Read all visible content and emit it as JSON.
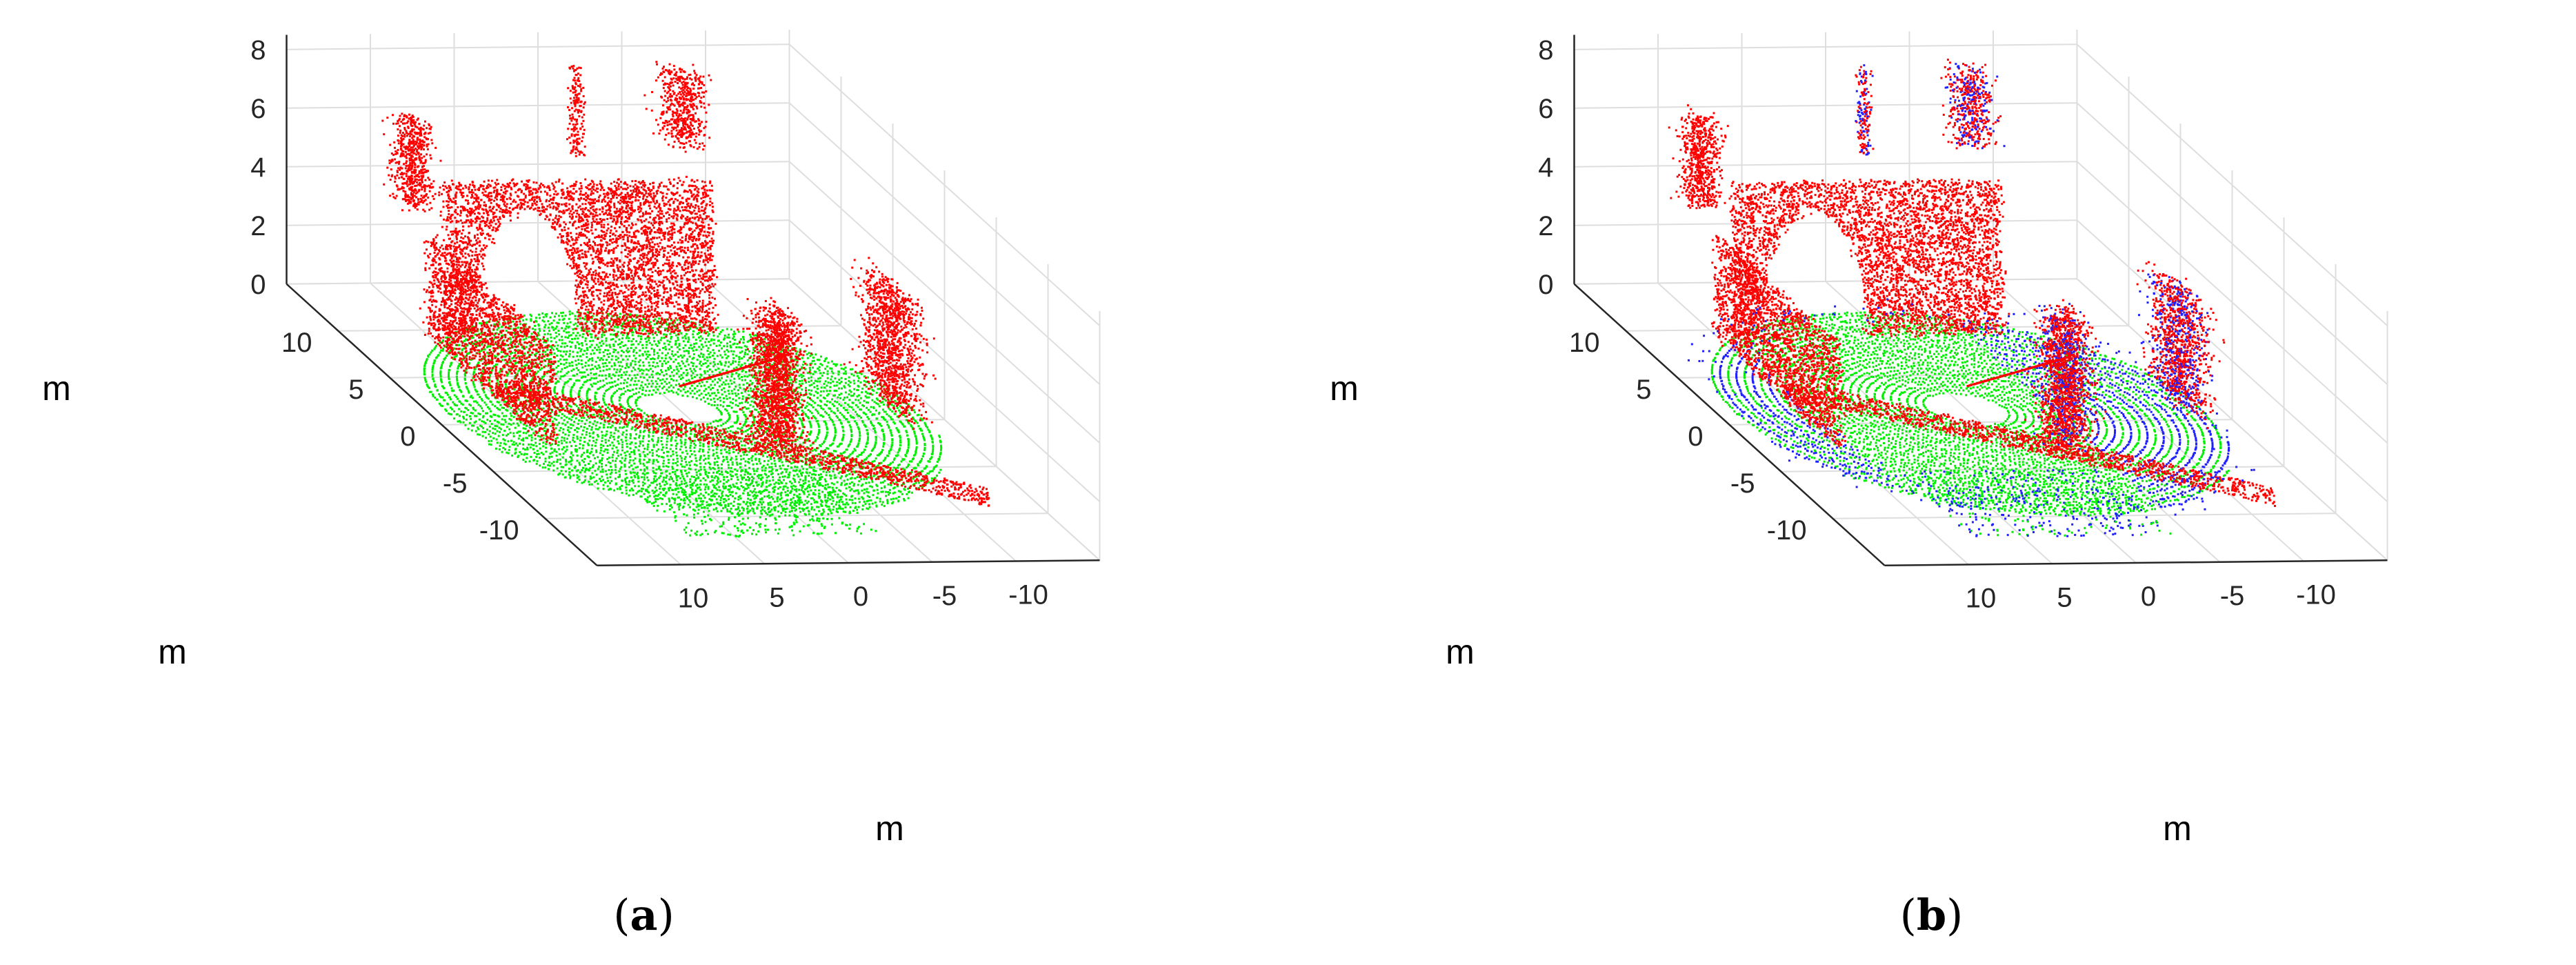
{
  "colors": {
    "ground": "#00ee00",
    "non_ground": "#ff0000",
    "extra_class": "#2020ff",
    "axes": "#262626",
    "grid": "#dedede"
  },
  "chart_data": [
    {
      "type": "scatter",
      "subtype": "3d-point-cloud",
      "panel_label": "a",
      "axis_labels": {
        "x": "m",
        "y": "m",
        "z": "m"
      },
      "x_ticks": [
        "-10",
        "-5",
        "0",
        "5",
        "10"
      ],
      "y_ticks": [
        "-10",
        "-5",
        "0",
        "5",
        "10"
      ],
      "z_ticks": [
        "0",
        "2",
        "4",
        "6",
        "8"
      ],
      "xlim": [
        -15,
        15
      ],
      "ylim": [
        -15,
        15
      ],
      "zlim": [
        0,
        8
      ],
      "grid": true,
      "series": [
        {
          "class": "ground",
          "color": "#00ee00"
        },
        {
          "class": "non-ground",
          "color": "#ff0000"
        }
      ]
    },
    {
      "type": "scatter",
      "subtype": "3d-point-cloud",
      "panel_label": "b",
      "axis_labels": {
        "x": "m",
        "y": "m",
        "z": "m"
      },
      "x_ticks": [
        "-10",
        "-5",
        "0",
        "5",
        "10"
      ],
      "y_ticks": [
        "-10",
        "-5",
        "0",
        "5",
        "10"
      ],
      "z_ticks": [
        "0",
        "2",
        "4",
        "6",
        "8"
      ],
      "xlim": [
        -15,
        15
      ],
      "ylim": [
        -15,
        15
      ],
      "zlim": [
        0,
        8
      ],
      "grid": true,
      "series": [
        {
          "class": "ground",
          "color": "#00ee00"
        },
        {
          "class": "non-ground",
          "color": "#ff0000"
        },
        {
          "class": "additional",
          "color": "#2020ff"
        }
      ]
    }
  ]
}
